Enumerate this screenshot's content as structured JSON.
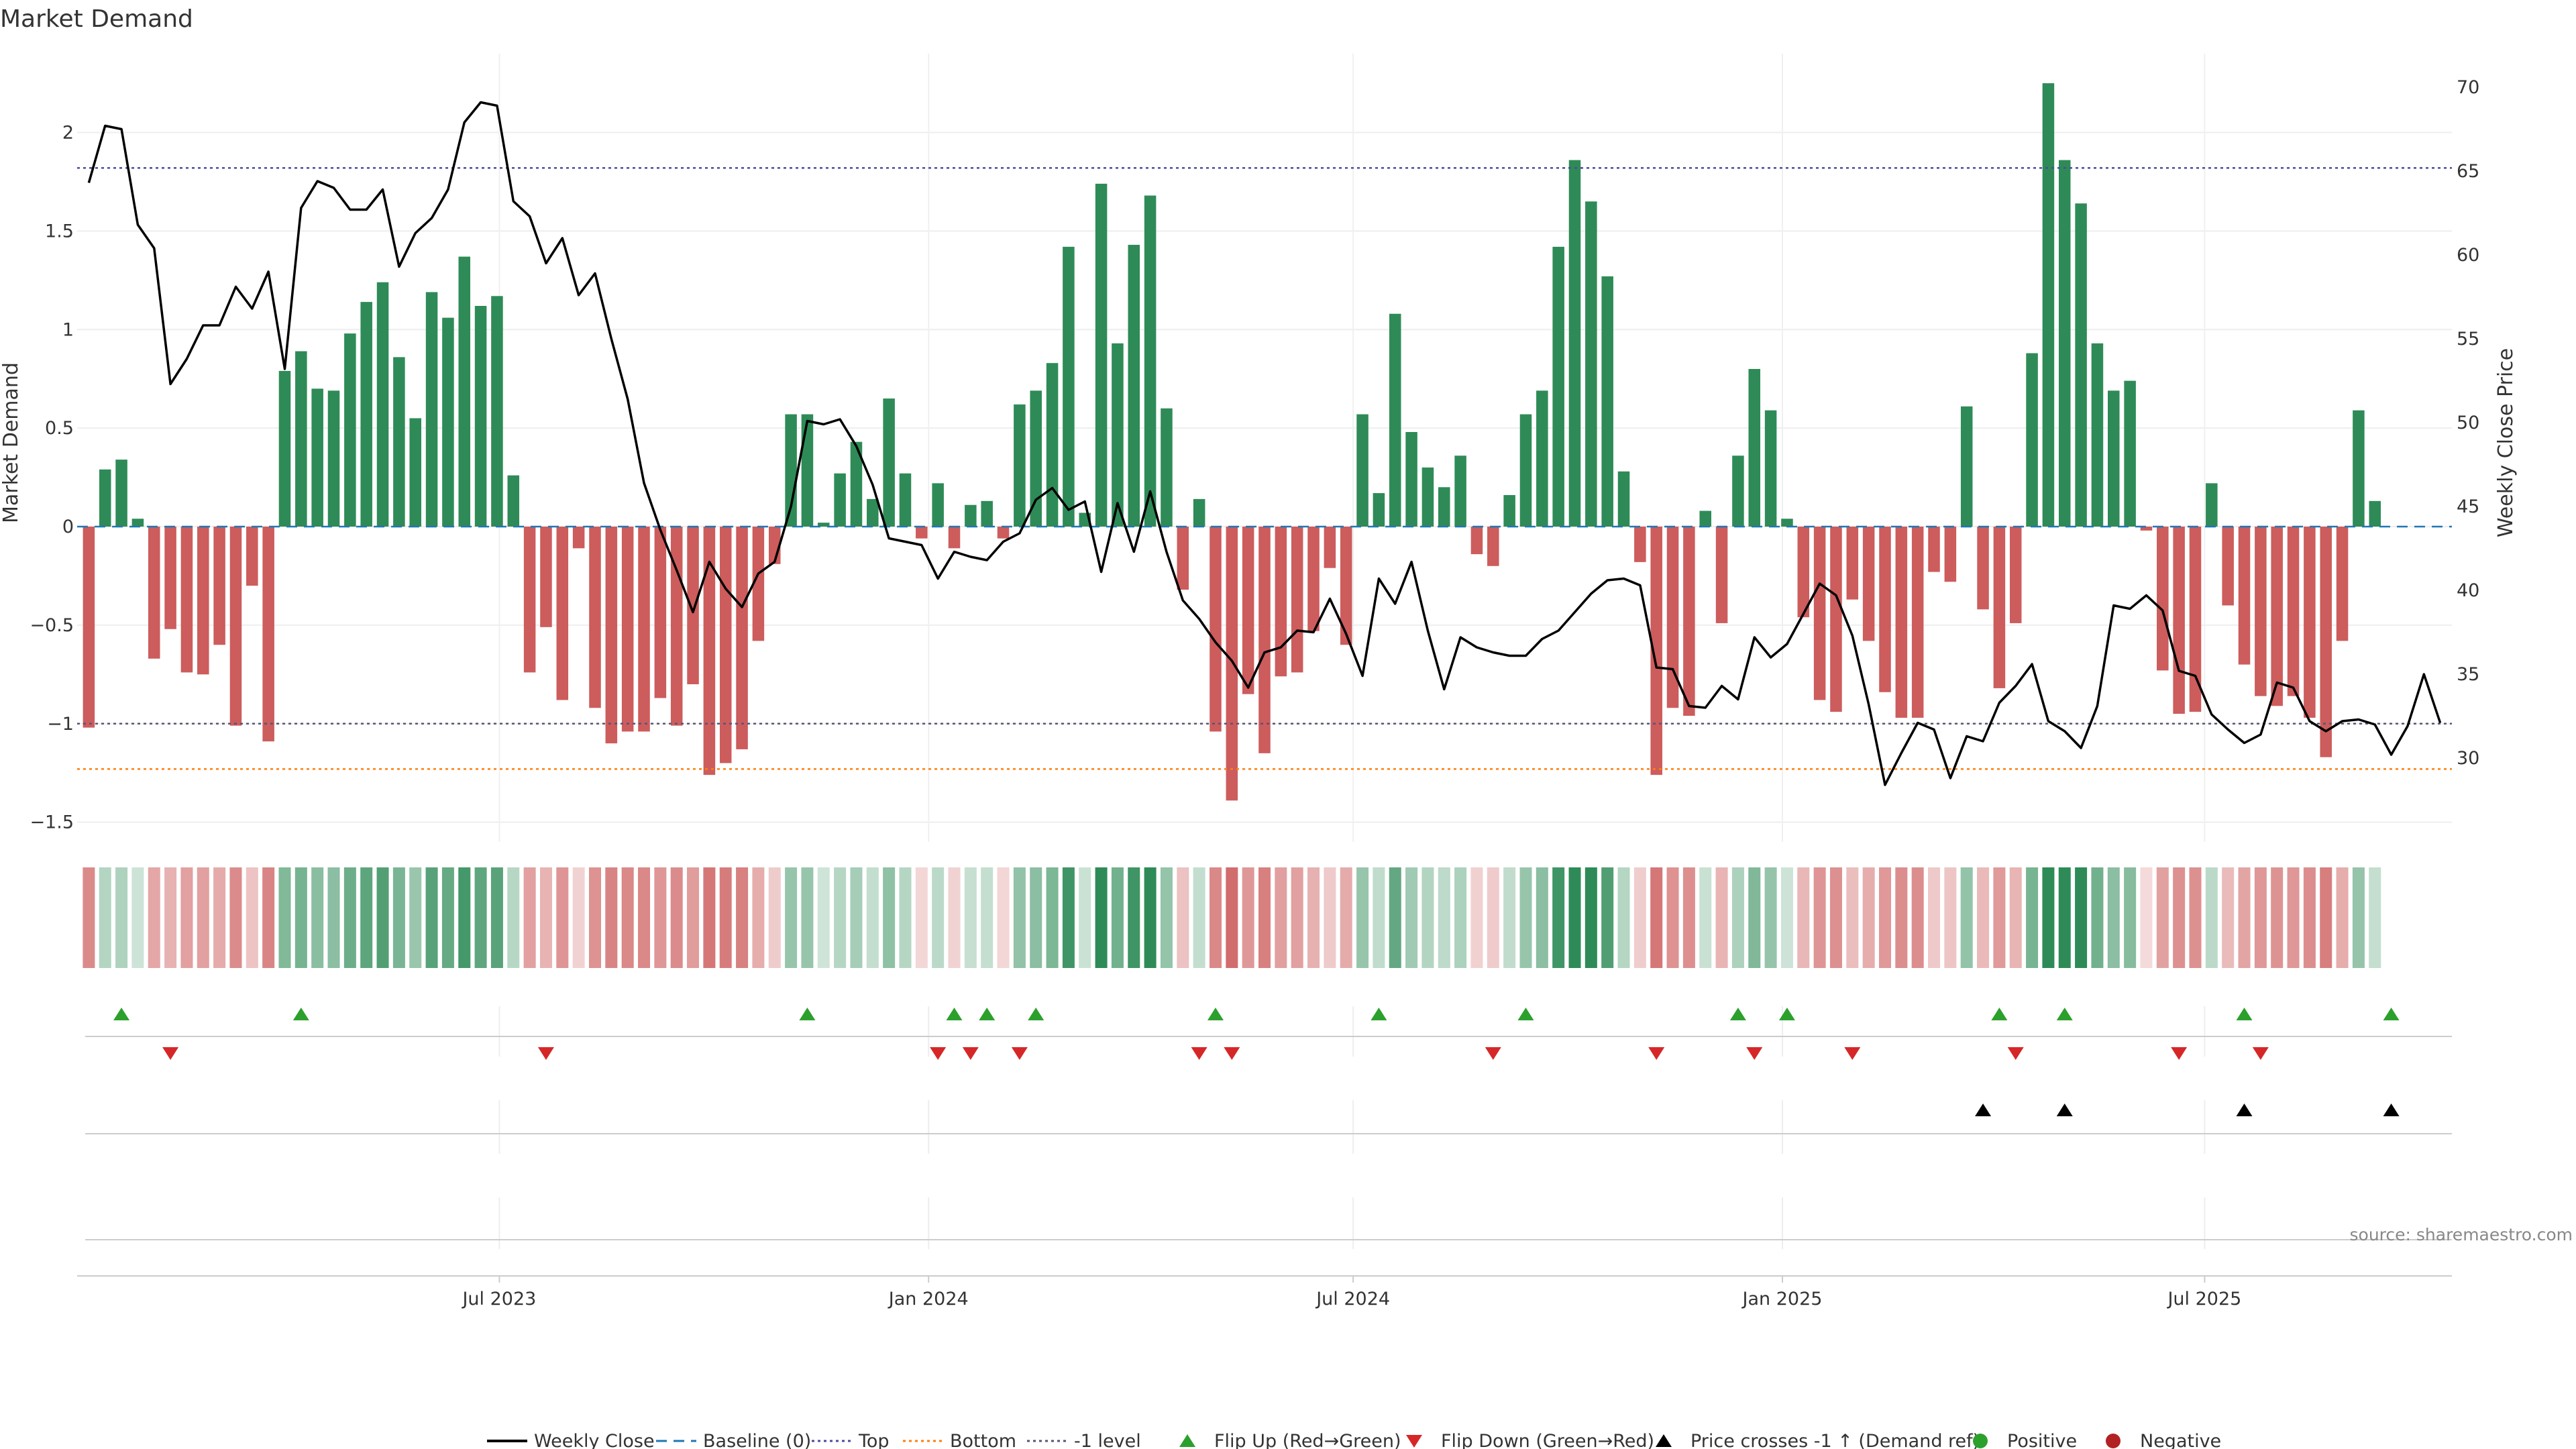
{
  "chart_data": {
    "type": "bar",
    "title": "Market Demand",
    "ylabel_left": "Market Demand",
    "ylabel_right": "Weekly Close Price",
    "source": "source: sharemaestro.com",
    "ylim_left": [
      -1.6,
      2.4
    ],
    "ylim_right": [
      25,
      72
    ],
    "yticks_left": [
      -1.5,
      -1,
      -0.5,
      0,
      0.5,
      1,
      1.5,
      2
    ],
    "ytick_labels_left": [
      "−1.5",
      "−1",
      "−0.5",
      "0",
      "0.5",
      "1",
      "1.5",
      "2"
    ],
    "yticks_right": [
      30,
      35,
      40,
      45,
      50,
      55,
      60,
      65,
      70
    ],
    "ytick_labels_right": [
      "30",
      "35",
      "40",
      "45",
      "50",
      "55",
      "60",
      "65",
      "70"
    ],
    "x_start": "2023-01-06",
    "x_range": [
      "2023-01-01",
      "2025-10-15"
    ],
    "xticks": [
      "2023-07-01",
      "2024-01-01",
      "2024-07-01",
      "2025-01-01",
      "2025-07-01"
    ],
    "xtick_labels": [
      "Jul 2023",
      "Jan 2024",
      "Jul 2024",
      "Jan 2025",
      "Jul 2025"
    ],
    "reference_lines": {
      "baseline": 0,
      "top": 1.82,
      "bottom": -1.23,
      "minus_one": -1
    },
    "colors": {
      "positive": "#2e8b57",
      "negative": "#cd5c5c",
      "close_line": "#000000",
      "baseline": "#1f77b4",
      "top": "#4b4b9c",
      "bottom": "#ff7f0e",
      "minus_one": "#555577",
      "flip_up": "#2ca02c",
      "flip_down": "#d62728",
      "cross": "#000000",
      "positive_dot": "#2ca02c",
      "negative_dot": "#b22222"
    },
    "demand": [
      -1.02,
      0.29,
      0.34,
      0.04,
      -0.67,
      -0.52,
      -0.74,
      -0.75,
      -0.6,
      -1.01,
      -0.3,
      -1.09,
      0.79,
      0.89,
      0.7,
      0.69,
      0.98,
      1.14,
      1.24,
      0.86,
      0.55,
      1.19,
      1.06,
      1.37,
      1.12,
      1.17,
      0.26,
      -0.74,
      -0.51,
      -0.88,
      -0.11,
      -0.92,
      -1.1,
      -1.04,
      -1.04,
      -0.87,
      -1.01,
      -0.8,
      -1.26,
      -1.2,
      -1.13,
      -0.58,
      -0.19,
      0.57,
      0.57,
      0.02,
      0.27,
      0.43,
      0.14,
      0.65,
      0.27,
      -0.06,
      0.22,
      -0.11,
      0.11,
      0.13,
      -0.06,
      0.62,
      0.69,
      0.83,
      1.42,
      0.07,
      1.74,
      0.93,
      1.43,
      1.68,
      0.6,
      -0.32,
      0.14,
      -1.04,
      -1.39,
      -0.85,
      -1.15,
      -0.76,
      -0.74,
      -0.53,
      -0.21,
      -0.6,
      0.57,
      0.17,
      1.08,
      0.48,
      0.3,
      0.2,
      0.36,
      -0.14,
      -0.2,
      0.16,
      0.57,
      0.69,
      1.42,
      1.86,
      1.65,
      1.27,
      0.28,
      -0.18,
      -1.26,
      -0.92,
      -0.96,
      0.08,
      -0.49,
      0.36,
      0.8,
      0.59,
      0.04,
      -0.46,
      -0.88,
      -0.94,
      -0.37,
      -0.58,
      -0.84,
      -0.97,
      -0.97,
      -0.23,
      -0.28,
      0.61,
      -0.42,
      -0.82,
      -0.49,
      0.88,
      2.25,
      1.86,
      1.64,
      0.93,
      0.69,
      0.74,
      -0.02,
      -0.73,
      -0.95,
      -0.94,
      0.22,
      -0.4,
      -0.7,
      -0.86,
      -0.91,
      -0.86,
      -0.97,
      -1.17,
      -0.58,
      0.59,
      0.13
    ],
    "weekly_close": [
      64.3,
      67.7,
      67.5,
      61.8,
      60.4,
      52.3,
      53.8,
      55.8,
      55.8,
      58.1,
      56.8,
      59.0,
      53.2,
      62.8,
      64.4,
      64.0,
      62.7,
      62.7,
      63.9,
      59.3,
      61.3,
      62.2,
      63.9,
      67.9,
      69.1,
      68.9,
      63.2,
      62.3,
      59.5,
      61.0,
      57.6,
      58.9,
      55.0,
      51.4,
      46.4,
      43.6,
      41.2,
      38.7,
      41.7,
      40.1,
      39.0,
      41.0,
      41.7,
      45.0,
      50.1,
      49.9,
      50.2,
      48.6,
      46.3,
      43.1,
      42.9,
      42.7,
      40.7,
      42.3,
      42.0,
      41.8,
      42.9,
      43.4,
      45.4,
      46.1,
      44.8,
      45.3,
      41.1,
      45.2,
      42.3,
      45.9,
      42.3,
      39.4,
      38.3,
      36.9,
      35.8,
      34.2,
      36.3,
      36.6,
      37.6,
      37.5,
      39.5,
      37.4,
      34.9,
      40.7,
      39.2,
      41.7,
      37.6,
      34.1,
      37.2,
      36.6,
      36.3,
      36.1,
      36.1,
      37.1,
      37.6,
      38.7,
      39.8,
      40.6,
      40.7,
      40.3,
      35.4,
      35.3,
      33.1,
      33.0,
      34.3,
      33.5,
      37.2,
      36.0,
      36.8,
      38.6,
      40.4,
      39.7,
      37.3,
      33.2,
      28.4,
      30.3,
      32.1,
      31.7,
      28.8,
      31.3,
      31.0,
      33.3,
      34.3,
      35.6,
      32.2,
      31.6,
      30.6,
      33.1,
      39.1,
      38.9,
      39.7,
      38.8,
      35.2,
      34.9,
      32.6,
      31.7,
      30.9,
      31.4,
      34.5,
      34.2,
      32.2,
      31.6,
      32.2,
      32.3,
      32.0,
      30.2,
      31.9,
      35.0,
      32.1
    ],
    "flip_up_weeks": [
      2,
      13,
      44,
      53,
      55,
      58,
      69,
      79,
      88,
      101,
      104,
      117,
      121,
      132,
      141
    ],
    "flip_down_weeks": [
      5,
      28,
      52,
      54,
      57,
      68,
      70,
      86,
      96,
      102,
      108,
      118,
      128,
      133
    ],
    "cross_weeks": [
      116,
      121,
      132,
      141
    ],
    "legend": [
      {
        "label": "Weekly Close",
        "kind": "line-solid",
        "color": "#000000"
      },
      {
        "label": "Baseline (0)",
        "kind": "line-dash",
        "color": "#1f77b4"
      },
      {
        "label": "Top",
        "kind": "line-dot",
        "color": "#4b4b9c"
      },
      {
        "label": "Bottom",
        "kind": "line-dot",
        "color": "#ff7f0e"
      },
      {
        "label": "-1 level",
        "kind": "line-dot",
        "color": "#555577"
      },
      {
        "label": "Flip Up (Red→Green)",
        "kind": "tri-up",
        "color": "#2ca02c"
      },
      {
        "label": "Flip Down (Green→Red)",
        "kind": "tri-down",
        "color": "#d62728"
      },
      {
        "label": "Price crosses -1 ↑ (Demand ref)",
        "kind": "tri-up",
        "color": "#000000"
      },
      {
        "label": "Positive",
        "kind": "dot",
        "color": "#2ca02c"
      },
      {
        "label": "Negative",
        "kind": "dot",
        "color": "#b22222"
      }
    ],
    "grid": true,
    "legend_position": "bottom-center"
  }
}
